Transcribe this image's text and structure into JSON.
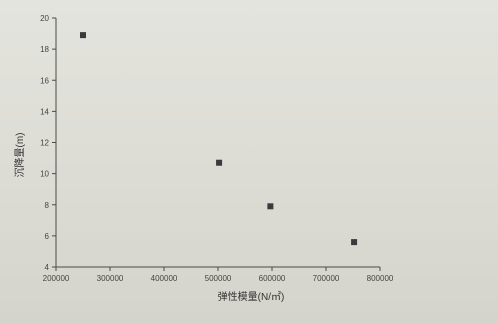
{
  "chart_data": {
    "type": "scatter",
    "title": "",
    "xlabel": "弹性模量(N/㎡)",
    "ylabel": "沉降量(m)",
    "xlim": [
      200000,
      800000
    ],
    "ylim": [
      4,
      20
    ],
    "xticks": [
      200000,
      300000,
      400000,
      500000,
      600000,
      700000,
      800000
    ],
    "yticks": [
      4,
      6,
      8,
      10,
      12,
      14,
      16,
      18,
      20
    ],
    "grid": false,
    "series": [
      {
        "x": [
          250000,
          502000,
          597000,
          752000
        ],
        "y": [
          18.9,
          10.7,
          7.9,
          5.6
        ]
      }
    ]
  },
  "colors": {
    "background": "#dcdcd6",
    "axis": "#4a4a4a",
    "marker": "#3a3a3a"
  }
}
